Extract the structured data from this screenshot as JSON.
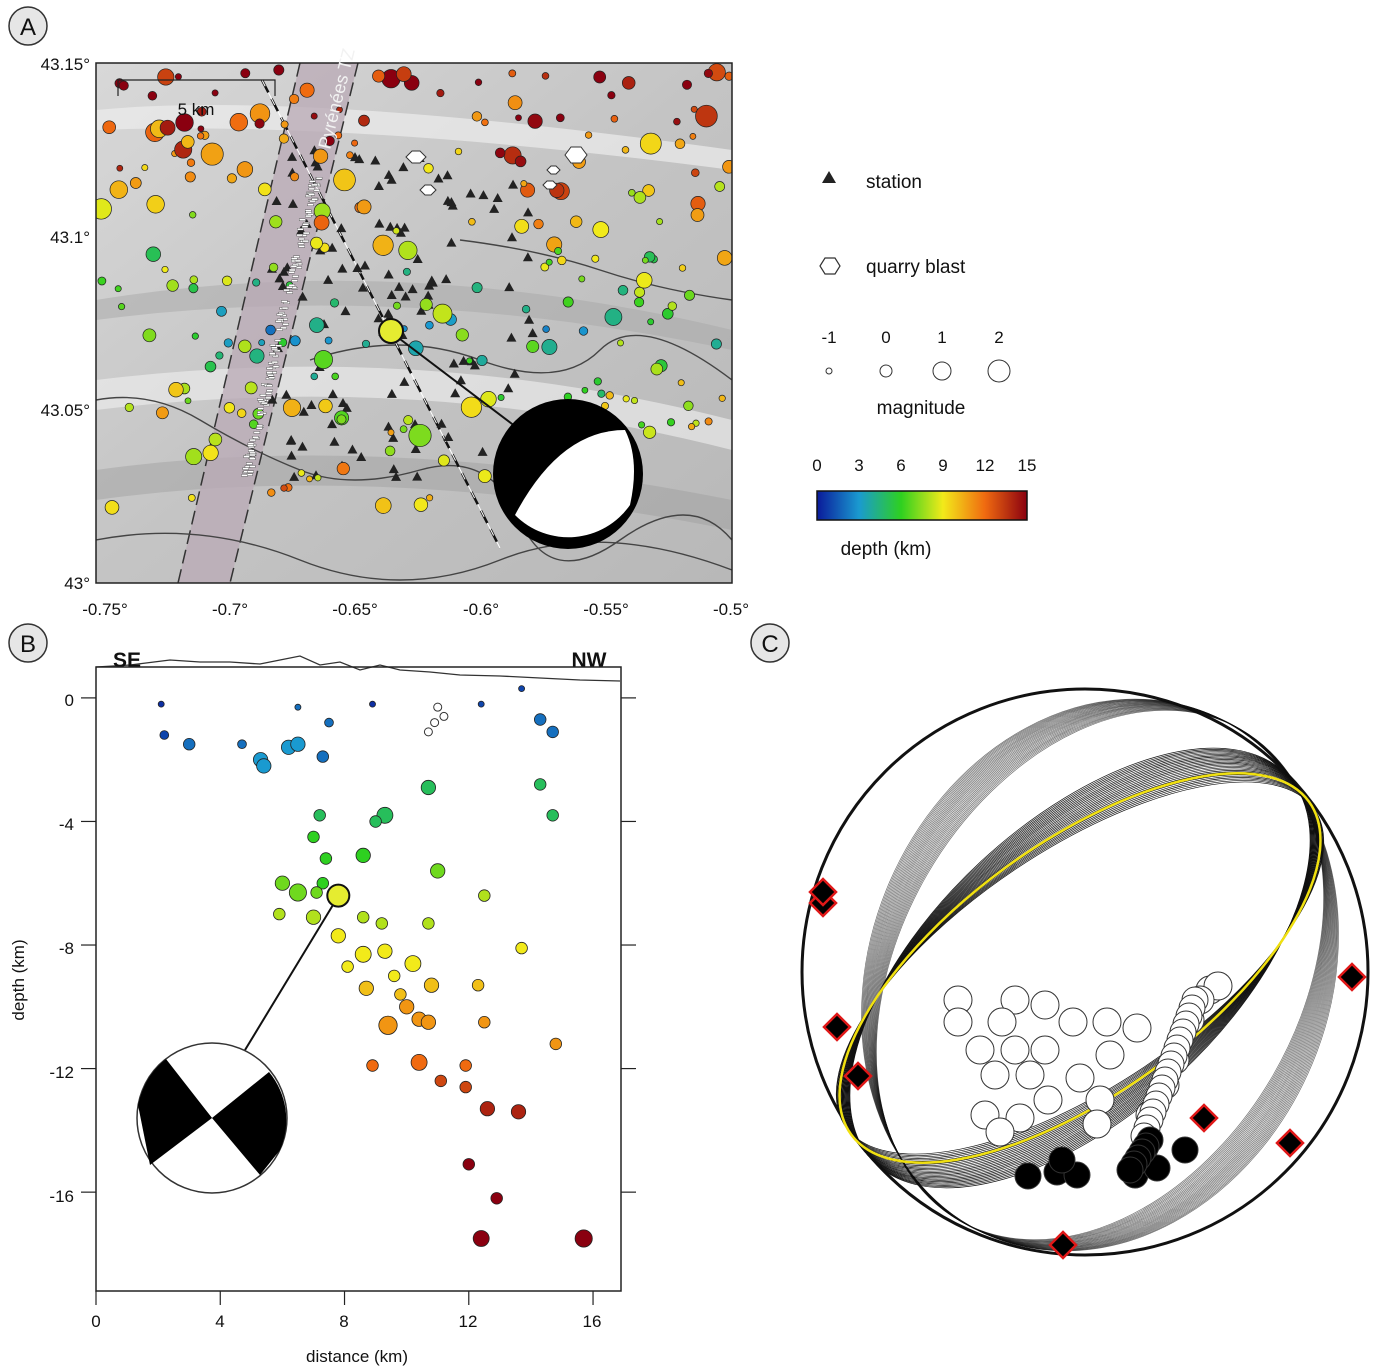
{
  "panels": {
    "a": {
      "label": "A"
    },
    "b": {
      "label": "B"
    },
    "c": {
      "label": "C"
    }
  },
  "map": {
    "lat_ticks": [
      "43.15°",
      "43.1°",
      "43.05°",
      "43°"
    ],
    "lon_ticks": [
      "-0.75°",
      "-0.7°",
      "-0.65°",
      "-0.6°",
      "-0.55°",
      "-0.5°"
    ],
    "scale_bar": "5 km",
    "fault_zone_label": "Pyrénées TZ"
  },
  "legend": {
    "station": "station",
    "quarry_blast": "quarry blast",
    "magnitude_ticks": [
      "-1",
      "0",
      "1",
      "2"
    ],
    "magnitude_title": "magnitude",
    "depth_ticks": [
      "0",
      "3",
      "6",
      "9",
      "12",
      "15"
    ],
    "depth_title": "depth (km)",
    "colors": {
      "shallow": "#0a1a9a",
      "mid": "#f2ea1a",
      "deep": "#8a0010"
    }
  },
  "section": {
    "left_label": "SE",
    "right_label": "NW",
    "ylabel": "depth (km)",
    "xlabel": "distance (km)",
    "y_ticks": [
      "0",
      "-4",
      "-8",
      "-12",
      "-16"
    ],
    "x_ticks": [
      "0",
      "4",
      "8",
      "12",
      "16"
    ]
  },
  "chart_data": {
    "type": "scatter",
    "xlabel": "distance (km)",
    "ylabel": "depth (km)",
    "xlim": [
      0,
      16.9
    ],
    "ylim": [
      -19.2,
      1
    ],
    "mainshock": {
      "x": 7.8,
      "y": -6.4
    },
    "points": [
      [
        2.1,
        -0.2,
        -1,
        0.5
      ],
      [
        2.2,
        -1.2,
        -0.5,
        1
      ],
      [
        3,
        -1.5,
        0,
        2
      ],
      [
        4.7,
        -1.5,
        -0.5,
        2
      ],
      [
        5.3,
        -2,
        0.5,
        3
      ],
      [
        5.4,
        -2.2,
        0.5,
        3
      ],
      [
        6.2,
        -1.6,
        0.5,
        3
      ],
      [
        6.5,
        -1.5,
        0.5,
        3
      ],
      [
        7.3,
        -1.9,
        0,
        2
      ],
      [
        7.5,
        -0.8,
        -0.5,
        2
      ],
      [
        6.5,
        -0.3,
        -1,
        2
      ],
      [
        8.9,
        -0.2,
        -1,
        0.5
      ],
      [
        12.4,
        -0.2,
        -1,
        1
      ],
      [
        13.7,
        0.3,
        -1,
        1
      ],
      [
        14.3,
        -0.7,
        0,
        2
      ],
      [
        14.7,
        -1.1,
        0,
        2
      ],
      [
        14.3,
        -2.8,
        0,
        5
      ],
      [
        14.7,
        -3.8,
        0,
        5
      ],
      [
        9.3,
        -3.8,
        0.8,
        5
      ],
      [
        9,
        -4,
        0,
        5
      ],
      [
        10.7,
        -2.9,
        0.5,
        5
      ],
      [
        7.2,
        -3.8,
        0,
        5
      ],
      [
        7,
        -4.5,
        0,
        6
      ],
      [
        7.4,
        -5.2,
        0,
        6
      ],
      [
        8.6,
        -5.1,
        0.5,
        6
      ],
      [
        7.3,
        -6,
        0,
        6
      ],
      [
        6,
        -6,
        0.5,
        7
      ],
      [
        6.5,
        -6.3,
        1,
        7
      ],
      [
        7.1,
        -6.3,
        0,
        7
      ],
      [
        11,
        -5.6,
        0.5,
        7
      ],
      [
        5.9,
        -7,
        0,
        8
      ],
      [
        7,
        -7.1,
        0.5,
        8
      ],
      [
        8.6,
        -7.1,
        0,
        8
      ],
      [
        9.2,
        -7.3,
        0,
        8
      ],
      [
        10.7,
        -7.3,
        0,
        8
      ],
      [
        12.5,
        -6.4,
        0,
        8
      ],
      [
        7.8,
        -7.7,
        0.5,
        9
      ],
      [
        8.6,
        -8.3,
        0.8,
        9
      ],
      [
        9.3,
        -8.2,
        0.5,
        9
      ],
      [
        10.2,
        -8.6,
        0.8,
        9
      ],
      [
        8.1,
        -8.7,
        0,
        9
      ],
      [
        9.6,
        -9,
        0,
        9
      ],
      [
        10.8,
        -9.3,
        0.5,
        10
      ],
      [
        8.7,
        -9.4,
        0.5,
        10
      ],
      [
        9.8,
        -9.6,
        0,
        10
      ],
      [
        12.3,
        -9.3,
        0,
        10
      ],
      [
        13.7,
        -8.1,
        0,
        9
      ],
      [
        10,
        -10,
        0.5,
        11
      ],
      [
        10.4,
        -10.4,
        0.5,
        11
      ],
      [
        9.4,
        -10.6,
        1.2,
        11
      ],
      [
        10.7,
        -10.5,
        0.5,
        11
      ],
      [
        12.5,
        -10.5,
        0,
        11
      ],
      [
        14.8,
        -11.2,
        0,
        11
      ],
      [
        10.4,
        -11.8,
        0.8,
        12
      ],
      [
        8.9,
        -11.9,
        0,
        12
      ],
      [
        11.9,
        -11.9,
        0,
        12
      ],
      [
        11.1,
        -12.4,
        0,
        13
      ],
      [
        11.9,
        -12.6,
        0,
        13
      ],
      [
        12.6,
        -13.3,
        0.5,
        14
      ],
      [
        13.6,
        -13.4,
        0.5,
        14
      ],
      [
        12,
        -15.1,
        0,
        15
      ],
      [
        12.9,
        -16.2,
        0,
        15
      ],
      [
        12.4,
        -17.5,
        0.8,
        15
      ],
      [
        15.7,
        -17.5,
        1,
        15
      ]
    ]
  }
}
